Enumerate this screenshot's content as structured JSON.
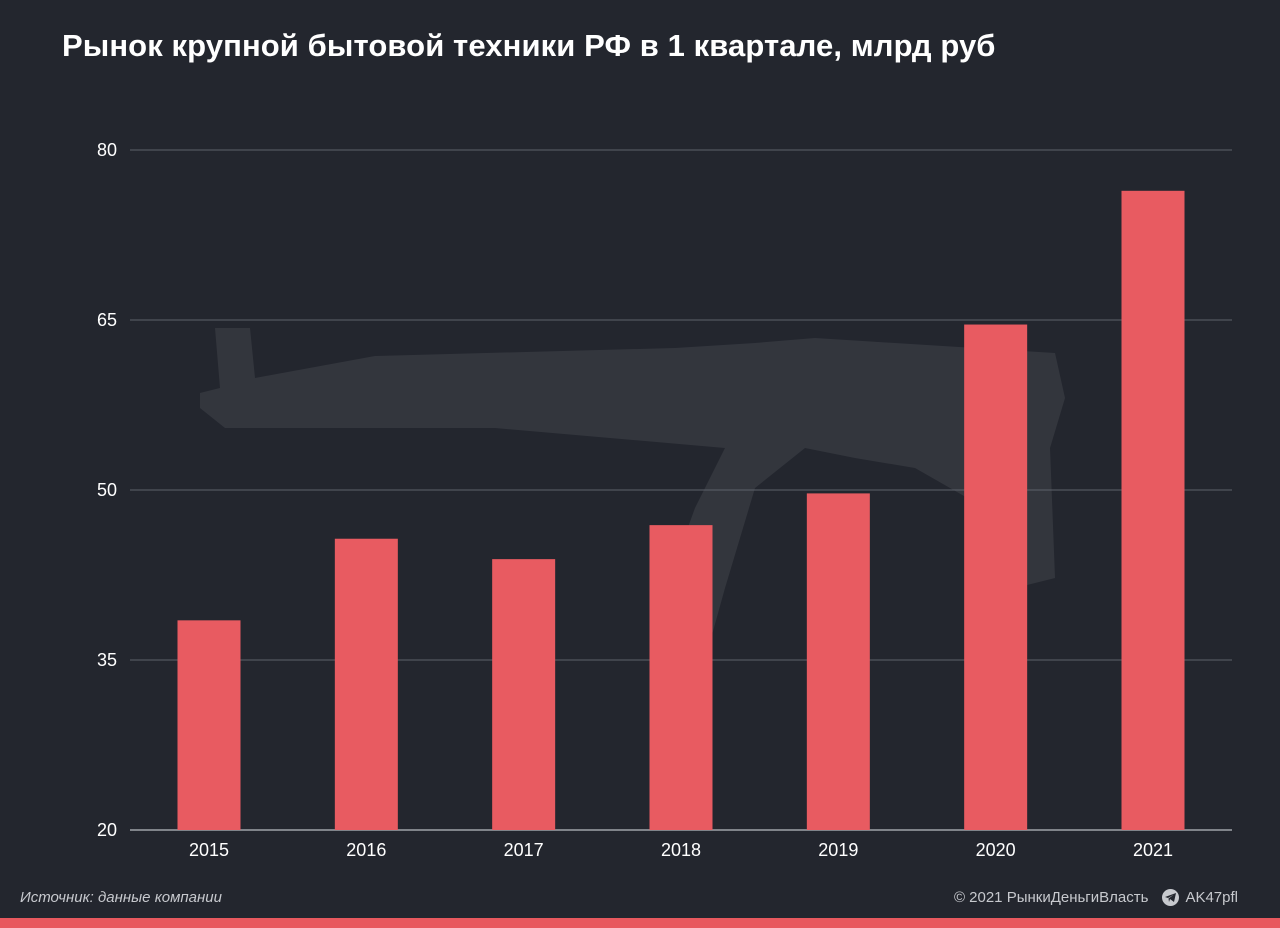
{
  "title": "Рынок крупной бытовой техники РФ в 1 квартале, млрд руб",
  "source": "Источник: данные компании",
  "copyright": "© 2021  РынкиДеньгиВласть",
  "channel": "AK47pfl",
  "colors": {
    "background": "#23262e",
    "bar": "#e85b61",
    "stripe": "#e8585e"
  },
  "chart_data": {
    "type": "bar",
    "categories": [
      "2015",
      "2016",
      "2017",
      "2018",
      "2019",
      "2020",
      "2021"
    ],
    "values": [
      38.5,
      45.7,
      43.9,
      46.9,
      49.7,
      64.6,
      76.4
    ],
    "ylim": [
      20,
      80
    ],
    "yticks": [
      20,
      35,
      50,
      65,
      80
    ],
    "grid": true,
    "xlabel": "",
    "ylabel": ""
  }
}
